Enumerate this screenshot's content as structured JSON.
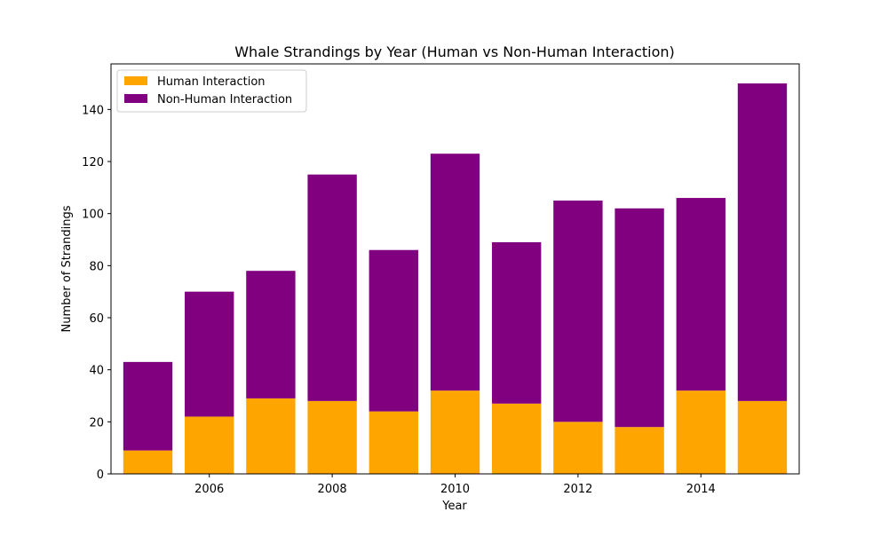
{
  "chart_data": {
    "type": "bar",
    "stacked": true,
    "title": "Whale Strandings by Year (Human vs Non-Human Interaction)",
    "xlabel": "Year",
    "ylabel": "Number of Strandings",
    "x": [
      2005,
      2006,
      2007,
      2008,
      2009,
      2010,
      2011,
      2012,
      2013,
      2014,
      2015
    ],
    "xlim": [
      2004.4,
      2015.6
    ],
    "ylim": [
      0,
      157.5
    ],
    "xticks": [
      "2006",
      "2008",
      "2010",
      "2012",
      "2014"
    ],
    "yticks": [
      "0",
      "20",
      "40",
      "60",
      "80",
      "100",
      "120",
      "140"
    ],
    "grid": false,
    "legend_position": "top-left",
    "series": [
      {
        "name": "Human Interaction",
        "color": "#FFA500",
        "values": [
          9,
          22,
          29,
          28,
          24,
          32,
          27,
          20,
          18,
          32,
          28
        ]
      },
      {
        "name": "Non-Human Interaction",
        "color": "#800080",
        "values": [
          34,
          48,
          49,
          87,
          62,
          91,
          62,
          85,
          84,
          74,
          122
        ]
      }
    ]
  }
}
